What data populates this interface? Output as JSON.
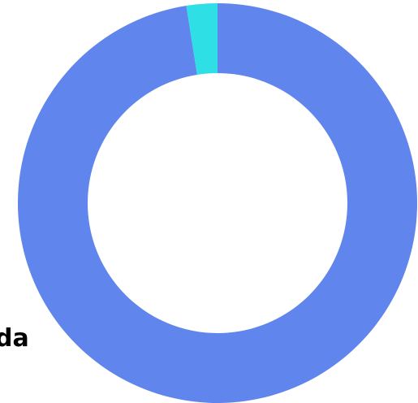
{
  "chart_data": {
    "type": "pie",
    "variant": "donut",
    "title": "",
    "legend": "none",
    "series": [
      {
        "categories": [
          "",
          ""
        ],
        "values": [
          97.5,
          2.5
        ],
        "colors": [
          "#6085ec",
          "#2ee0e6"
        ]
      }
    ],
    "visible_labels": [
      "da"
    ],
    "label_color": "#000000",
    "background": "#ffffff"
  }
}
